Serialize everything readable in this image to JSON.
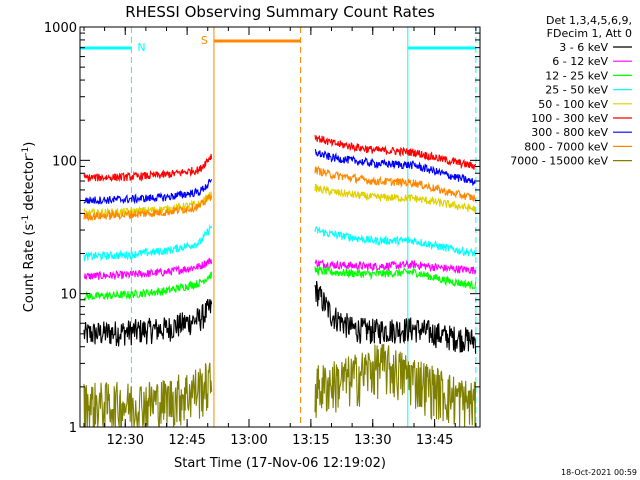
{
  "chart_data": {
    "type": "line",
    "title": "RHESSI Observing Summary Count Rates",
    "xlabel": "Start Time (17-Nov-06 12:19:02)",
    "ylabel_main": "Count Rate (s",
    "ylabel_sup1": "-1",
    "ylabel_mid": " detector",
    "ylabel_sup2": "-1",
    "ylabel_end": ")",
    "yscale": "log",
    "xlim": [
      "12:19:02",
      "13:56:00"
    ],
    "ylim": [
      1,
      1000
    ],
    "x_ticks": [
      "12:30",
      "12:45",
      "13:00",
      "13:15",
      "13:30",
      "13:45"
    ],
    "y_ticks": [
      "1",
      "10",
      "100",
      "1000"
    ],
    "legend_position": "right",
    "legend_header": [
      "Det 1,3,4,5,6,9,",
      "FDecim 1, Att 0"
    ],
    "series": [
      {
        "name": "3 - 6 keV",
        "color": "#000000",
        "segments": [
          [
            [
              "12:20",
              5.0
            ],
            [
              "12:30",
              5.2
            ],
            [
              "12:40",
              5.5
            ],
            [
              "12:48",
              6.5
            ],
            [
              "12:51",
              8.0
            ]
          ],
          [
            [
              "13:16",
              11.0
            ],
            [
              "13:20",
              7.0
            ],
            [
              "13:25",
              5.5
            ],
            [
              "13:30",
              5.3
            ],
            [
              "13:40",
              5.5
            ],
            [
              "13:48",
              4.8
            ],
            [
              "13:55",
              4.5
            ]
          ]
        ]
      },
      {
        "name": "6 - 12 keV",
        "color": "#ff00ff",
        "segments": [
          [
            [
              "12:20",
              13.5
            ],
            [
              "12:30",
              13.8
            ],
            [
              "12:40",
              14.5
            ],
            [
              "12:48",
              16.0
            ],
            [
              "12:51",
              18.0
            ]
          ],
          [
            [
              "13:16",
              17.0
            ],
            [
              "13:20",
              16.5
            ],
            [
              "13:30",
              16.0
            ],
            [
              "13:40",
              16.5
            ],
            [
              "13:48",
              15.5
            ],
            [
              "13:55",
              15.0
            ]
          ]
        ]
      },
      {
        "name": "12 - 25 keV",
        "color": "#00ff00",
        "segments": [
          [
            [
              "12:20",
              9.5
            ],
            [
              "12:30",
              9.8
            ],
            [
              "12:40",
              10.5
            ],
            [
              "12:48",
              12.0
            ],
            [
              "12:51",
              14.0
            ]
          ],
          [
            [
              "13:16",
              15.0
            ],
            [
              "13:20",
              14.5
            ],
            [
              "13:30",
              14.0
            ],
            [
              "13:40",
              14.5
            ],
            [
              "13:48",
              12.5
            ],
            [
              "13:55",
              11.5
            ]
          ]
        ]
      },
      {
        "name": "25 - 50 keV",
        "color": "#00ffff",
        "segments": [
          [
            [
              "12:20",
              19.0
            ],
            [
              "12:30",
              19.5
            ],
            [
              "12:40",
              21.0
            ],
            [
              "12:48",
              24.0
            ],
            [
              "12:51",
              32.0
            ]
          ],
          [
            [
              "13:16",
              30.0
            ],
            [
              "13:20",
              28.0
            ],
            [
              "13:30",
              25.0
            ],
            [
              "13:40",
              25.0
            ],
            [
              "13:48",
              22.0
            ],
            [
              "13:55",
              20.0
            ]
          ]
        ]
      },
      {
        "name": "50 - 100 keV",
        "color": "#e0d000",
        "segments": [
          [
            [
              "12:20",
              40.0
            ],
            [
              "12:30",
              41.0
            ],
            [
              "12:40",
              43.0
            ],
            [
              "12:48",
              47.0
            ],
            [
              "12:51",
              56.0
            ]
          ],
          [
            [
              "13:16",
              62.0
            ],
            [
              "13:20",
              58.0
            ],
            [
              "13:30",
              53.0
            ],
            [
              "13:40",
              52.0
            ],
            [
              "13:48",
              47.0
            ],
            [
              "13:55",
              43.0
            ]
          ]
        ]
      },
      {
        "name": "100 - 300 keV",
        "color": "#ff0000",
        "segments": [
          [
            [
              "12:20",
              74.0
            ],
            [
              "12:30",
              75.0
            ],
            [
              "12:40",
              78.0
            ],
            [
              "12:48",
              85.0
            ],
            [
              "12:51",
              110.0
            ]
          ],
          [
            [
              "13:16",
              150.0
            ],
            [
              "13:20",
              135.0
            ],
            [
              "13:30",
              120.0
            ],
            [
              "13:40",
              115.0
            ],
            [
              "13:48",
              100.0
            ],
            [
              "13:55",
              90.0
            ]
          ]
        ]
      },
      {
        "name": "300 - 800 keV",
        "color": "#0000ff",
        "segments": [
          [
            [
              "12:20",
              50.0
            ],
            [
              "12:30",
              51.0
            ],
            [
              "12:40",
              53.0
            ],
            [
              "12:48",
              58.0
            ],
            [
              "12:51",
              70.0
            ]
          ],
          [
            [
              "13:16",
              115.0
            ],
            [
              "13:20",
              105.0
            ],
            [
              "13:30",
              95.0
            ],
            [
              "13:40",
              92.0
            ],
            [
              "13:48",
              78.0
            ],
            [
              "13:55",
              68.0
            ]
          ]
        ]
      },
      {
        "name": "800 - 7000 keV",
        "color": "#ff8800",
        "segments": [
          [
            [
              "12:20",
              38.0
            ],
            [
              "12:30",
              39.0
            ],
            [
              "12:40",
              41.0
            ],
            [
              "12:48",
              45.0
            ],
            [
              "12:51",
              55.0
            ]
          ],
          [
            [
              "13:16",
              85.0
            ],
            [
              "13:20",
              78.0
            ],
            [
              "13:30",
              70.0
            ],
            [
              "13:40",
              68.0
            ],
            [
              "13:48",
              58.0
            ],
            [
              "13:55",
              52.0
            ]
          ]
        ]
      },
      {
        "name": "7000 - 15000 keV",
        "color": "#808000",
        "segments": [
          [
            [
              "12:20",
              1.5
            ],
            [
              "12:30",
              1.5
            ],
            [
              "12:40",
              1.6
            ],
            [
              "12:48",
              2.0
            ],
            [
              "12:51",
              2.2
            ]
          ],
          [
            [
              "13:16",
              2.0
            ],
            [
              "13:25",
              2.4
            ],
            [
              "13:32",
              3.0
            ],
            [
              "13:40",
              2.4
            ],
            [
              "13:48",
              1.8
            ],
            [
              "13:55",
              1.5
            ]
          ]
        ]
      }
    ],
    "markers": {
      "night": [
        {
          "label": "N",
          "start": "12:19:02",
          "end": "12:31:30",
          "color": "#00ffff"
        },
        {
          "label": "",
          "start": "13:38:30",
          "end": "13:55:00",
          "color": "#00ffff"
        }
      ],
      "saa": {
        "label": "S",
        "start": "12:51:30",
        "end": "13:12:30",
        "color": "#ff8800"
      }
    },
    "timestamp": "18-Oct-2021 00:59"
  }
}
